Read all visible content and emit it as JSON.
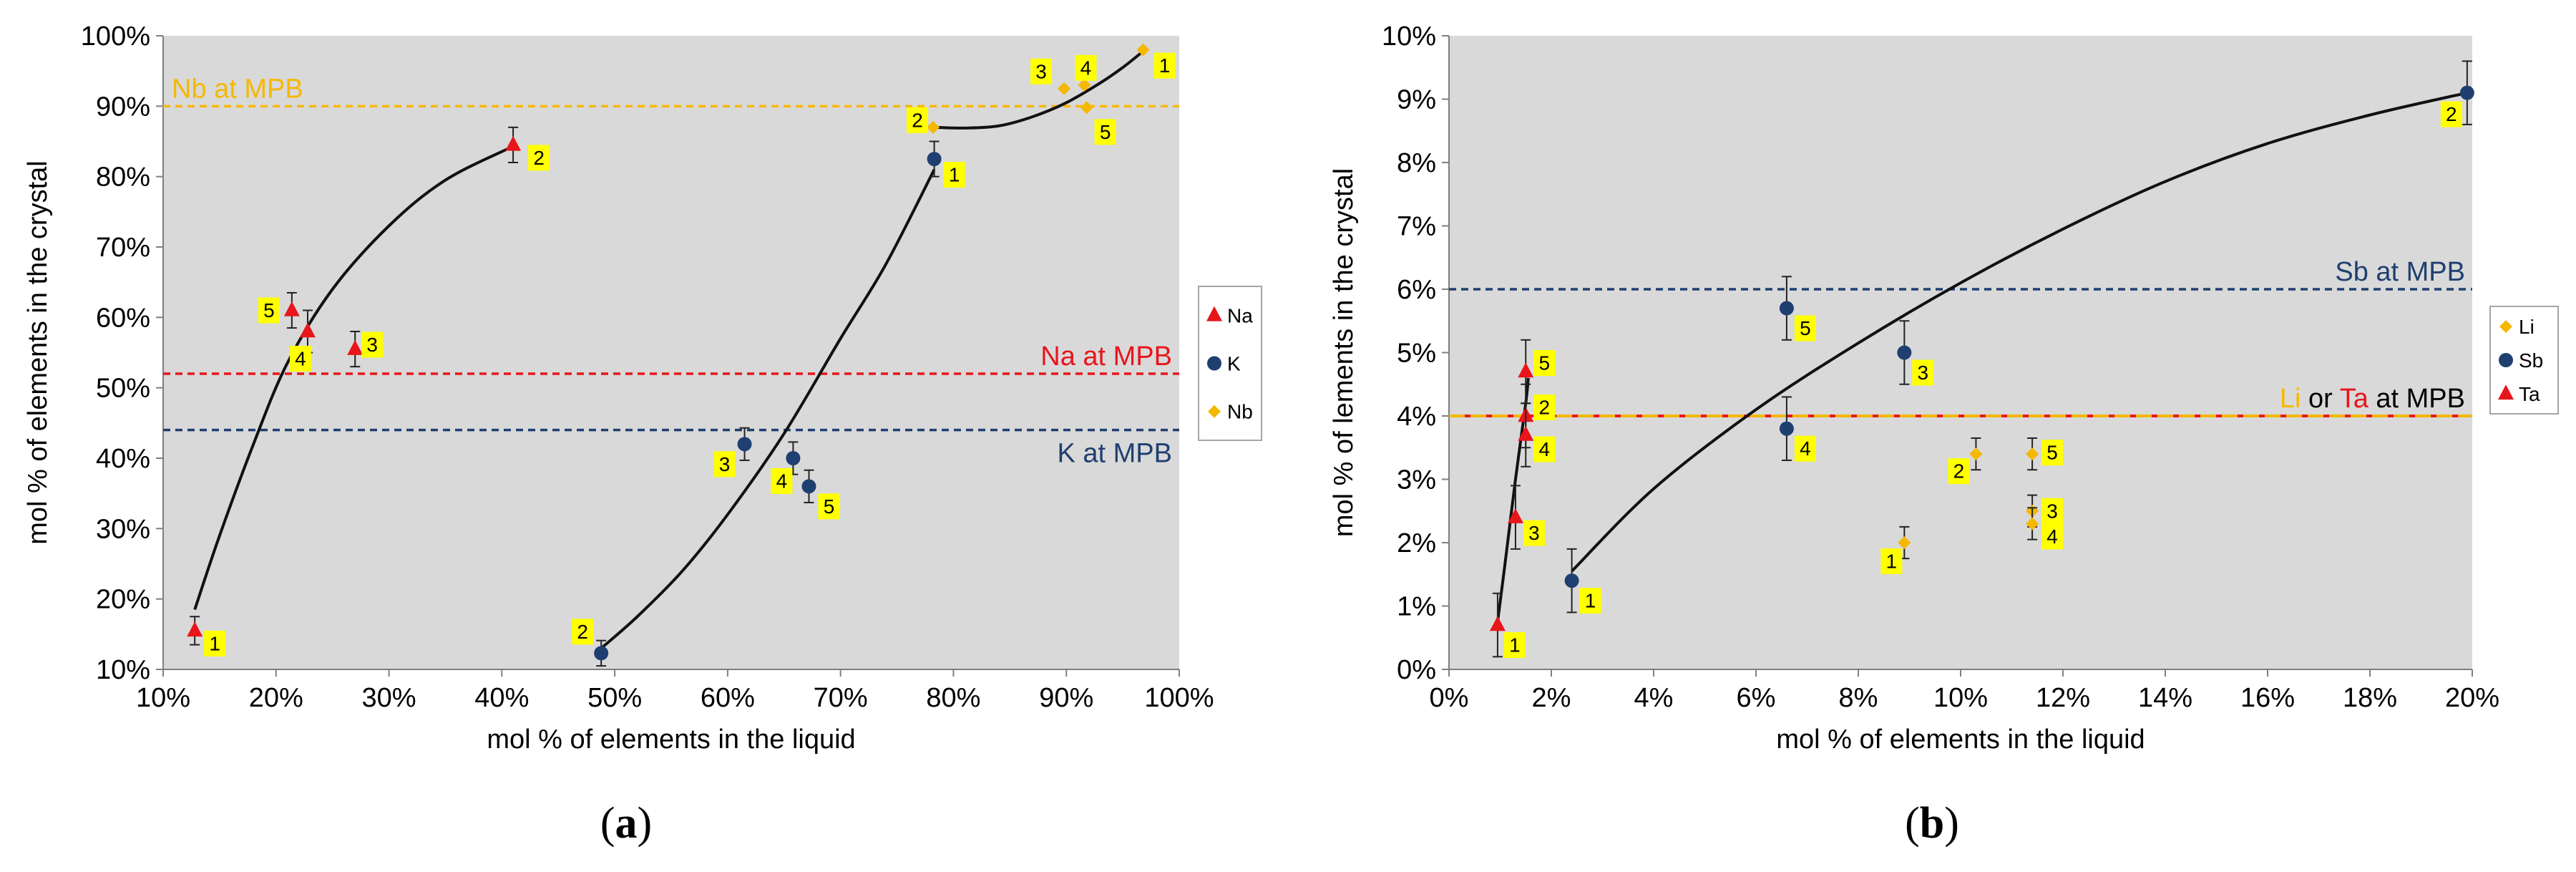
{
  "chart_data": [
    {
      "panel": "(a)",
      "type": "scatter",
      "xlabel": "mol % of elements in the liquid",
      "ylabel": "mol % of elements in the crystal",
      "xlim": [
        10,
        100
      ],
      "ylim": [
        10,
        100
      ],
      "xticks": [
        "10%",
        "20%",
        "30%",
        "40%",
        "50%",
        "60%",
        "70%",
        "80%",
        "90%",
        "100%"
      ],
      "yticks": [
        "10%",
        "20%",
        "30%",
        "40%",
        "50%",
        "60%",
        "70%",
        "80%",
        "90%",
        "100%"
      ],
      "reference_lines": [
        {
          "label": "Nb at MPB",
          "y": 90,
          "color": "#f5b800",
          "label_pos": "left"
        },
        {
          "label": "Na at MPB",
          "y": 52,
          "color": "#e8151b",
          "label_pos": "right"
        },
        {
          "label": "K at MPB",
          "y": 44,
          "color": "#1f3f70",
          "label_pos": "right"
        }
      ],
      "legend": [
        "Na",
        "K",
        "Nb"
      ],
      "series": [
        {
          "name": "Na",
          "marker": "triangle",
          "color": "#e8151b",
          "points": [
            {
              "x": 12.8,
              "y": 15.5,
              "err": 2,
              "label": "1"
            },
            {
              "x": 41.0,
              "y": 84.5,
              "err": 2.5,
              "label": "2"
            },
            {
              "x": 27.0,
              "y": 55.5,
              "err": 2.5,
              "label": "3"
            },
            {
              "x": 22.8,
              "y": 58.0,
              "err": 3,
              "label": "4"
            },
            {
              "x": 21.4,
              "y": 61.0,
              "err": 2.5,
              "label": "5"
            }
          ]
        },
        {
          "name": "K",
          "marker": "circle",
          "color": "#1f3f70",
          "points": [
            {
              "x": 78.3,
              "y": 82.5,
              "err": 2.5,
              "label": "1"
            },
            {
              "x": 48.8,
              "y": 12.3,
              "err": 1.8,
              "label": "2"
            },
            {
              "x": 61.5,
              "y": 42.0,
              "err": 2.3,
              "label": "3"
            },
            {
              "x": 65.8,
              "y": 40.0,
              "err": 2.3,
              "label": "4"
            },
            {
              "x": 67.2,
              "y": 36.0,
              "err": 2.3,
              "label": "5"
            }
          ]
        },
        {
          "name": "Nb",
          "marker": "diamond",
          "color": "#f5b800",
          "points": [
            {
              "x": 96.8,
              "y": 98.0,
              "err": 0,
              "label": "1"
            },
            {
              "x": 78.2,
              "y": 87.0,
              "err": 0,
              "label": "2"
            },
            {
              "x": 89.8,
              "y": 92.5,
              "err": 0,
              "label": "3"
            },
            {
              "x": 91.6,
              "y": 93.0,
              "err": 0,
              "label": "4"
            },
            {
              "x": 91.8,
              "y": 89.8,
              "err": 0,
              "label": "5"
            }
          ]
        }
      ],
      "trend_curves": [
        [
          [
            12.8,
            18.5
          ],
          [
            15,
            29
          ],
          [
            18,
            42
          ],
          [
            21,
            53.5
          ],
          [
            25,
            64
          ],
          [
            30,
            73
          ],
          [
            35,
            79.5
          ],
          [
            41,
            84.3
          ]
        ],
        [
          [
            48.8,
            13
          ],
          [
            52,
            17.5
          ],
          [
            56,
            24
          ],
          [
            60,
            32
          ],
          [
            65,
            43.5
          ],
          [
            70,
            57
          ],
          [
            74,
            67.5
          ],
          [
            78.3,
            81
          ]
        ],
        [
          [
            78.3,
            87
          ],
          [
            81,
            86.9
          ],
          [
            84,
            87.2
          ],
          [
            87,
            88.5
          ],
          [
            90,
            90.5
          ],
          [
            93,
            93.3
          ],
          [
            95,
            95.5
          ],
          [
            96.8,
            97.8
          ]
        ]
      ]
    },
    {
      "panel": "(b)",
      "type": "scatter",
      "xlabel": "mol % of elements in the liquid",
      "ylabel": "mol % of lements in the crystal",
      "xlim": [
        0,
        20
      ],
      "ylim": [
        0,
        10
      ],
      "xticks": [
        "0%",
        "2%",
        "4%",
        "6%",
        "8%",
        "10%",
        "12%",
        "14%",
        "16%",
        "18%",
        "20%"
      ],
      "yticks": [
        "0%",
        "1%",
        "2%",
        "3%",
        "4%",
        "5%",
        "6%",
        "7%",
        "8%",
        "9%",
        "10%"
      ],
      "reference_lines": [
        {
          "label": "Sb at MPB",
          "y": 6,
          "color": "#1f3f70",
          "label_pos": "right"
        },
        {
          "label_parts": [
            "Li",
            " or ",
            "Ta",
            " at MPB"
          ],
          "y": 4,
          "color": "#f5b800",
          "color2": "#e8151b",
          "label_pos": "right"
        }
      ],
      "legend": [
        "Li",
        "Sb",
        "Ta"
      ],
      "series": [
        {
          "name": "Li",
          "marker": "diamond",
          "color": "#f5b800",
          "points": [
            {
              "x": 8.9,
              "y": 2.0,
              "err": 0.25,
              "label": "1"
            },
            {
              "x": 10.3,
              "y": 3.4,
              "err": 0.25,
              "label": "2"
            },
            {
              "x": 11.4,
              "y": 2.5,
              "err": 0.25,
              "label": "3"
            },
            {
              "x": 11.4,
              "y": 2.3,
              "err": 0.25,
              "label": "4"
            },
            {
              "x": 11.4,
              "y": 3.4,
              "err": 0.25,
              "label": "5"
            }
          ]
        },
        {
          "name": "Sb",
          "marker": "circle",
          "color": "#1f3f70",
          "points": [
            {
              "x": 2.4,
              "y": 1.4,
              "err": 0.5,
              "label": "1"
            },
            {
              "x": 19.9,
              "y": 9.1,
              "err": 0.5,
              "label": "2"
            },
            {
              "x": 8.9,
              "y": 5.0,
              "err": 0.5,
              "label": "3"
            },
            {
              "x": 6.6,
              "y": 3.8,
              "err": 0.5,
              "label": "4"
            },
            {
              "x": 6.6,
              "y": 5.7,
              "err": 0.5,
              "label": "5"
            }
          ]
        },
        {
          "name": "Ta",
          "marker": "triangle",
          "color": "#e8151b",
          "points": [
            {
              "x": 0.95,
              "y": 0.7,
              "err": 0.5,
              "label": "1"
            },
            {
              "x": 1.5,
              "y": 4.0,
              "err": 0.5,
              "label": "2"
            },
            {
              "x": 1.3,
              "y": 2.4,
              "err": 0.5,
              "label": "3"
            },
            {
              "x": 1.5,
              "y": 3.7,
              "err": 0.5,
              "label": "4"
            },
            {
              "x": 1.5,
              "y": 4.7,
              "err": 0.5,
              "label": "5"
            }
          ]
        }
      ],
      "trend_curves": [
        [
          [
            0.95,
            0.75
          ],
          [
            1.1,
            1.7
          ],
          [
            1.3,
            3.0
          ],
          [
            1.5,
            4.2
          ],
          [
            1.55,
            4.6
          ]
        ],
        [
          [
            2.4,
            1.55
          ],
          [
            4,
            2.85
          ],
          [
            6,
            4.1
          ],
          [
            8,
            5.15
          ],
          [
            10,
            6.1
          ],
          [
            12,
            6.95
          ],
          [
            14,
            7.7
          ],
          [
            16,
            8.3
          ],
          [
            18,
            8.75
          ],
          [
            19.9,
            9.1
          ]
        ]
      ]
    }
  ]
}
